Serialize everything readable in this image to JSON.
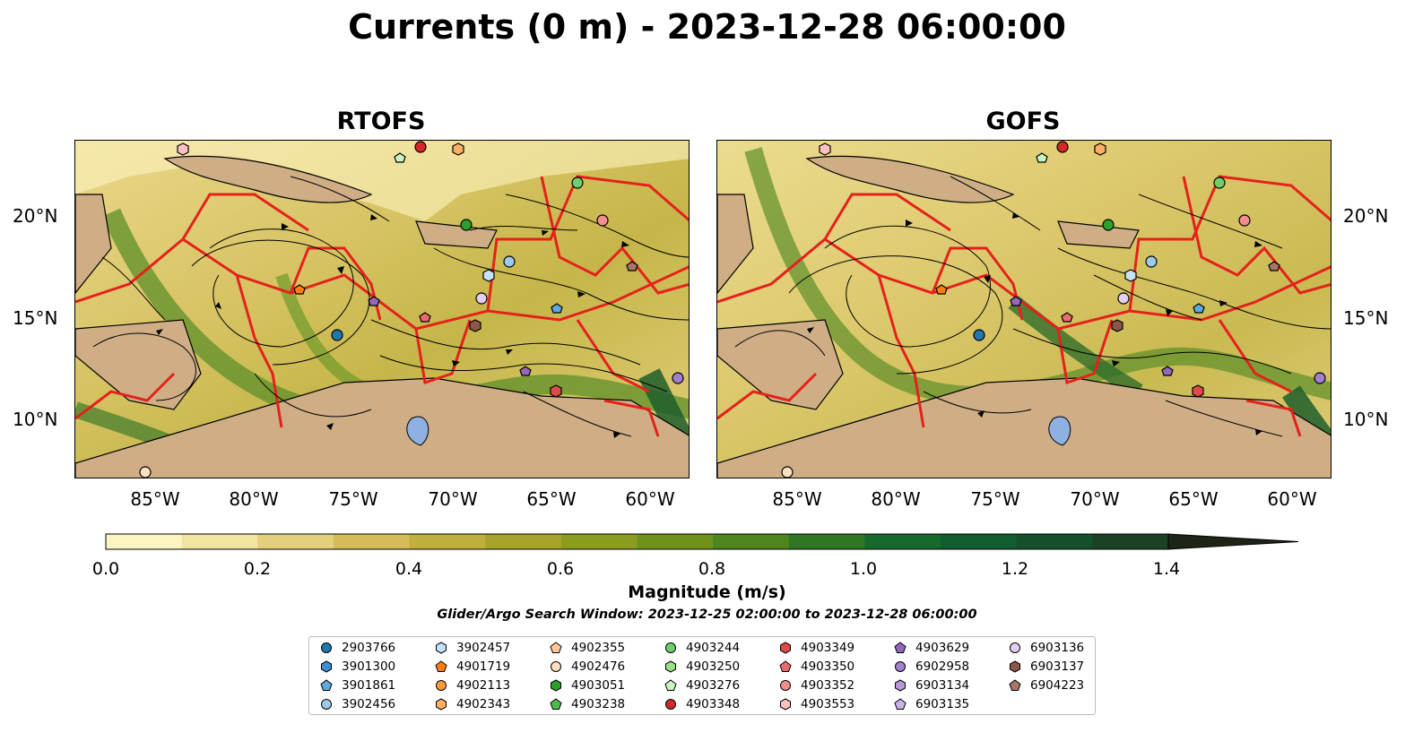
{
  "title": "Currents (0 m) - 2023-12-28 06:00:00",
  "panels": [
    {
      "name": "RTOFS"
    },
    {
      "name": "GOFS"
    }
  ],
  "lat_labels": [
    "20°N",
    "15°N",
    "10°N"
  ],
  "lon_labels": [
    "85°W",
    "80°W",
    "75°W",
    "70°W",
    "65°W",
    "60°W"
  ],
  "colorbar": {
    "label": "Magnitude (m/s)",
    "ticks": [
      "0.0",
      "0.2",
      "0.4",
      "0.6",
      "0.8",
      "1.0",
      "1.2",
      "1.4"
    ],
    "colors": [
      "#fdf6c3",
      "#f2e4a1",
      "#e4cf7a",
      "#d4bd58",
      "#bfaf3c",
      "#a8a32a",
      "#8c9c1e",
      "#6f921b",
      "#4f851d",
      "#2f7722",
      "#176a2d",
      "#105e30",
      "#14502c",
      "#1b4225",
      "#1e321d",
      "#1d2517"
    ],
    "extend": "max"
  },
  "search_window_text": "Glider/Argo Search Window: 2023-12-25 02:00:00 to 2023-12-28 06:00:00",
  "legend": [
    {
      "id": "2903766",
      "marker": "circle",
      "color": "#1f77b4"
    },
    {
      "id": "3901300",
      "marker": "hexagon",
      "color": "#3b8fd0"
    },
    {
      "id": "3901861",
      "marker": "pentagon",
      "color": "#5fa8e0"
    },
    {
      "id": "3902456",
      "marker": "circle",
      "color": "#9ecae9"
    },
    {
      "id": "3902457",
      "marker": "hexagon",
      "color": "#c6e2f5"
    },
    {
      "id": "4901719",
      "marker": "pentagon",
      "color": "#ff7f0e"
    },
    {
      "id": "4902113",
      "marker": "circle",
      "color": "#ff9a3c"
    },
    {
      "id": "4902343",
      "marker": "hexagon",
      "color": "#ffb066"
    },
    {
      "id": "4902355",
      "marker": "pentagon",
      "color": "#ffc896"
    },
    {
      "id": "4902476",
      "marker": "circle",
      "color": "#ffe0c0"
    },
    {
      "id": "4903051",
      "marker": "hexagon",
      "color": "#2ca02c"
    },
    {
      "id": "4903238",
      "marker": "pentagon",
      "color": "#4cbb4c"
    },
    {
      "id": "4903244",
      "marker": "circle",
      "color": "#6fcf6f"
    },
    {
      "id": "4903250",
      "marker": "hexagon",
      "color": "#98df8a"
    },
    {
      "id": "4903276",
      "marker": "pentagon",
      "color": "#c8f5c0"
    },
    {
      "id": "4903348",
      "marker": "circle",
      "color": "#d62728"
    },
    {
      "id": "4903349",
      "marker": "hexagon",
      "color": "#e04a4a"
    },
    {
      "id": "4903350",
      "marker": "pentagon",
      "color": "#ea6b6b"
    },
    {
      "id": "4903352",
      "marker": "circle",
      "color": "#f28e8e"
    },
    {
      "id": "4903553",
      "marker": "hexagon",
      "color": "#ffc0c0"
    },
    {
      "id": "4903629",
      "marker": "pentagon",
      "color": "#9467bd"
    },
    {
      "id": "6902958",
      "marker": "circle",
      "color": "#a57fcd"
    },
    {
      "id": "6903134",
      "marker": "hexagon",
      "color": "#b898da"
    },
    {
      "id": "6903135",
      "marker": "pentagon",
      "color": "#ccb2e6"
    },
    {
      "id": "6903136",
      "marker": "circle",
      "color": "#e2cff2"
    },
    {
      "id": "6903137",
      "marker": "hexagon",
      "color": "#8c564b"
    },
    {
      "id": "6904223",
      "marker": "pentagon",
      "color": "#a97567"
    }
  ]
}
